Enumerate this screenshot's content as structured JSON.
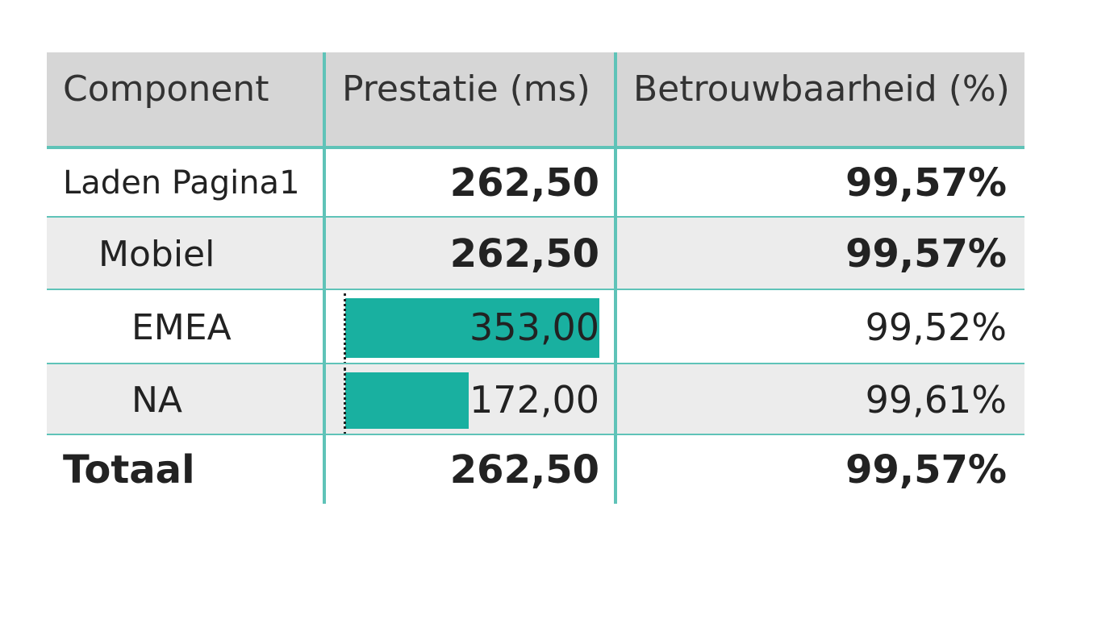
{
  "table": {
    "columns": [
      "Component",
      "Prestatie (ms)",
      "Betrouwbaarheid (%)"
    ],
    "rows": [
      [
        "Laden Pagina1",
        "262,50",
        "99,57%"
      ],
      [
        "Mobiel",
        "262,50",
        "99,57%"
      ],
      [
        "EMEA",
        {
          "value": 353,
          "label": "353,00"
        },
        "99,52%"
      ],
      [
        "NA",
        {
          "value": 172,
          "label": "172,00"
        },
        "99,61%"
      ],
      [
        "Totaal",
        "262,50",
        "99,57%"
      ]
    ]
  }
}
